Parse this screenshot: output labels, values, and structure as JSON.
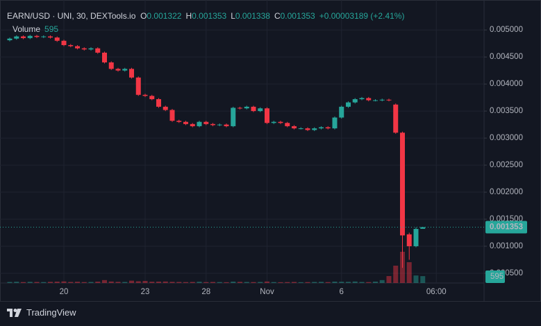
{
  "chart_data": {
    "type": "candlestick",
    "symbol": "EARN/USD · UNI, 30, DEXTools.io",
    "ohlc_labels": {
      "open_key": "O",
      "open": "0.001322",
      "high_key": "H",
      "high": "0.001353",
      "low_key": "L",
      "low": "0.001338",
      "close_key": "C",
      "close": "0.001353",
      "change": "+0.00003189 (+2.41%)"
    },
    "volume_label": "Volume",
    "volume_value": "595",
    "brand": "TradingView",
    "up_color": "#26a69a",
    "down_color": "#f23645",
    "grid": true,
    "last_price": 0.001353,
    "last_price_label": "0.001353",
    "categories": [
      null,
      null,
      null,
      null,
      null,
      null,
      null,
      null,
      "20",
      null,
      null,
      null,
      null,
      null,
      null,
      null,
      null,
      null,
      null,
      null,
      "23",
      null,
      null,
      null,
      null,
      null,
      null,
      null,
      null,
      "28",
      null,
      null,
      null,
      null,
      null,
      null,
      null,
      null,
      "Nov",
      null,
      null,
      null,
      null,
      null,
      null,
      null,
      null,
      null,
      null,
      "6",
      null,
      null,
      null,
      null,
      null,
      null,
      null,
      null,
      null,
      null,
      null,
      null,
      null,
      "06:00"
    ],
    "open": [
      0.00481,
      0.00484,
      0.00488,
      0.00485,
      0.00489,
      0.00487,
      0.00488,
      0.00486,
      0.0048,
      0.00472,
      0.0047,
      0.00466,
      0.00464,
      0.00466,
      0.00458,
      0.0044,
      0.00428,
      0.00425,
      0.00428,
      0.00412,
      0.0038,
      0.00378,
      0.00372,
      0.00358,
      0.00352,
      0.00332,
      0.0033,
      0.00326,
      0.00322,
      0.0033,
      0.00326,
      0.00324,
      0.00325,
      0.00322,
      0.00356,
      0.00355,
      0.00358,
      0.0035,
      0.00355,
      0.00328,
      0.0033,
      0.00328,
      0.00322,
      0.00318,
      0.00318,
      0.00315,
      0.00318,
      0.0032,
      0.00318,
      0.00338,
      0.00358,
      0.00366,
      0.00372,
      0.00374,
      0.0037,
      0.0037,
      0.00371,
      0.00362,
      0.0031,
      0.00122,
      0.001,
      0.001322,
      null,
      null
    ],
    "high": [
      0.00486,
      0.0049,
      0.0049,
      0.00491,
      0.00491,
      0.0049,
      0.0049,
      0.00488,
      0.00482,
      0.00474,
      0.00472,
      0.00468,
      0.00468,
      0.00468,
      0.0046,
      0.00442,
      0.0043,
      0.0043,
      0.0043,
      0.00414,
      0.00382,
      0.0038,
      0.00374,
      0.0036,
      0.00354,
      0.00334,
      0.00332,
      0.00328,
      0.00332,
      0.00332,
      0.00328,
      0.00327,
      0.00327,
      0.00358,
      0.00358,
      0.0036,
      0.0036,
      0.00357,
      0.00357,
      0.00332,
      0.00332,
      0.0033,
      0.00324,
      0.0032,
      0.0032,
      0.0032,
      0.00322,
      0.00322,
      0.0034,
      0.0036,
      0.00368,
      0.00374,
      0.00376,
      0.00376,
      0.00372,
      0.00373,
      0.00373,
      0.00364,
      0.00312,
      0.00125,
      0.00135,
      0.001353,
      null,
      null
    ],
    "low": [
      0.00479,
      0.00482,
      0.00483,
      0.00483,
      0.00485,
      0.00485,
      0.00484,
      0.00478,
      0.0047,
      0.00468,
      0.00464,
      0.00462,
      0.00462,
      0.00456,
      0.00438,
      0.00426,
      0.00423,
      0.00423,
      0.0041,
      0.00378,
      0.00376,
      0.0037,
      0.00356,
      0.0035,
      0.0033,
      0.00328,
      0.00324,
      0.0032,
      0.0032,
      0.00324,
      0.00322,
      0.00322,
      0.0032,
      0.0032,
      0.00353,
      0.00353,
      0.00348,
      0.00348,
      0.00326,
      0.00326,
      0.00326,
      0.0032,
      0.00316,
      0.00316,
      0.00313,
      0.00313,
      0.00316,
      0.00316,
      0.00316,
      0.00336,
      0.00356,
      0.00364,
      0.0037,
      0.00368,
      0.00368,
      0.00368,
      0.00368,
      0.00308,
      0.0006,
      0.00075,
      0.00098,
      0.001338,
      null,
      null
    ],
    "close": [
      0.00484,
      0.00488,
      0.00485,
      0.00489,
      0.00487,
      0.00488,
      0.00486,
      0.0048,
      0.00472,
      0.0047,
      0.00466,
      0.00464,
      0.00466,
      0.00458,
      0.0044,
      0.00428,
      0.00425,
      0.00428,
      0.00412,
      0.0038,
      0.00378,
      0.00372,
      0.00358,
      0.00352,
      0.00332,
      0.0033,
      0.00326,
      0.00322,
      0.0033,
      0.00326,
      0.00324,
      0.00325,
      0.00322,
      0.00356,
      0.00355,
      0.00358,
      0.0035,
      0.00355,
      0.00328,
      0.0033,
      0.00328,
      0.00322,
      0.00318,
      0.00318,
      0.00315,
      0.00318,
      0.0032,
      0.00318,
      0.00338,
      0.00358,
      0.00366,
      0.00372,
      0.00374,
      0.0037,
      0.0037,
      0.00371,
      0.0037,
      0.0031,
      0.0012,
      0.001,
      0.00132,
      0.001353,
      null,
      null
    ],
    "volume": [
      90,
      110,
      80,
      100,
      90,
      80,
      100,
      120,
      140,
      90,
      110,
      80,
      90,
      120,
      250,
      130,
      100,
      90,
      200,
      150,
      180,
      110,
      120,
      130,
      100,
      90,
      80,
      90,
      110,
      80,
      90,
      80,
      70,
      120,
      100,
      90,
      80,
      90,
      130,
      80,
      70,
      80,
      90,
      70,
      80,
      90,
      100,
      80,
      120,
      110,
      100,
      130,
      90,
      80,
      120,
      250,
      600,
      1500,
      2700,
      1800,
      650,
      595,
      null,
      null
    ],
    "ylim": [
      0.00032,
      0.00549
    ],
    "yticks": [
      {
        "value": 0.005,
        "label": "0.005000"
      },
      {
        "value": 0.0045,
        "label": "0.004500"
      },
      {
        "value": 0.004,
        "label": "0.004000"
      },
      {
        "value": 0.0035,
        "label": "0.003500"
      },
      {
        "value": 0.003,
        "label": "0.003000"
      },
      {
        "value": 0.0025,
        "label": "0.002500"
      },
      {
        "value": 0.002,
        "label": "0.002000"
      },
      {
        "value": 0.0015,
        "label": "0.001500"
      },
      {
        "value": 0.001,
        "label": "0.001000"
      },
      {
        "value": 0.0005,
        "label": "0.000500"
      }
    ]
  }
}
